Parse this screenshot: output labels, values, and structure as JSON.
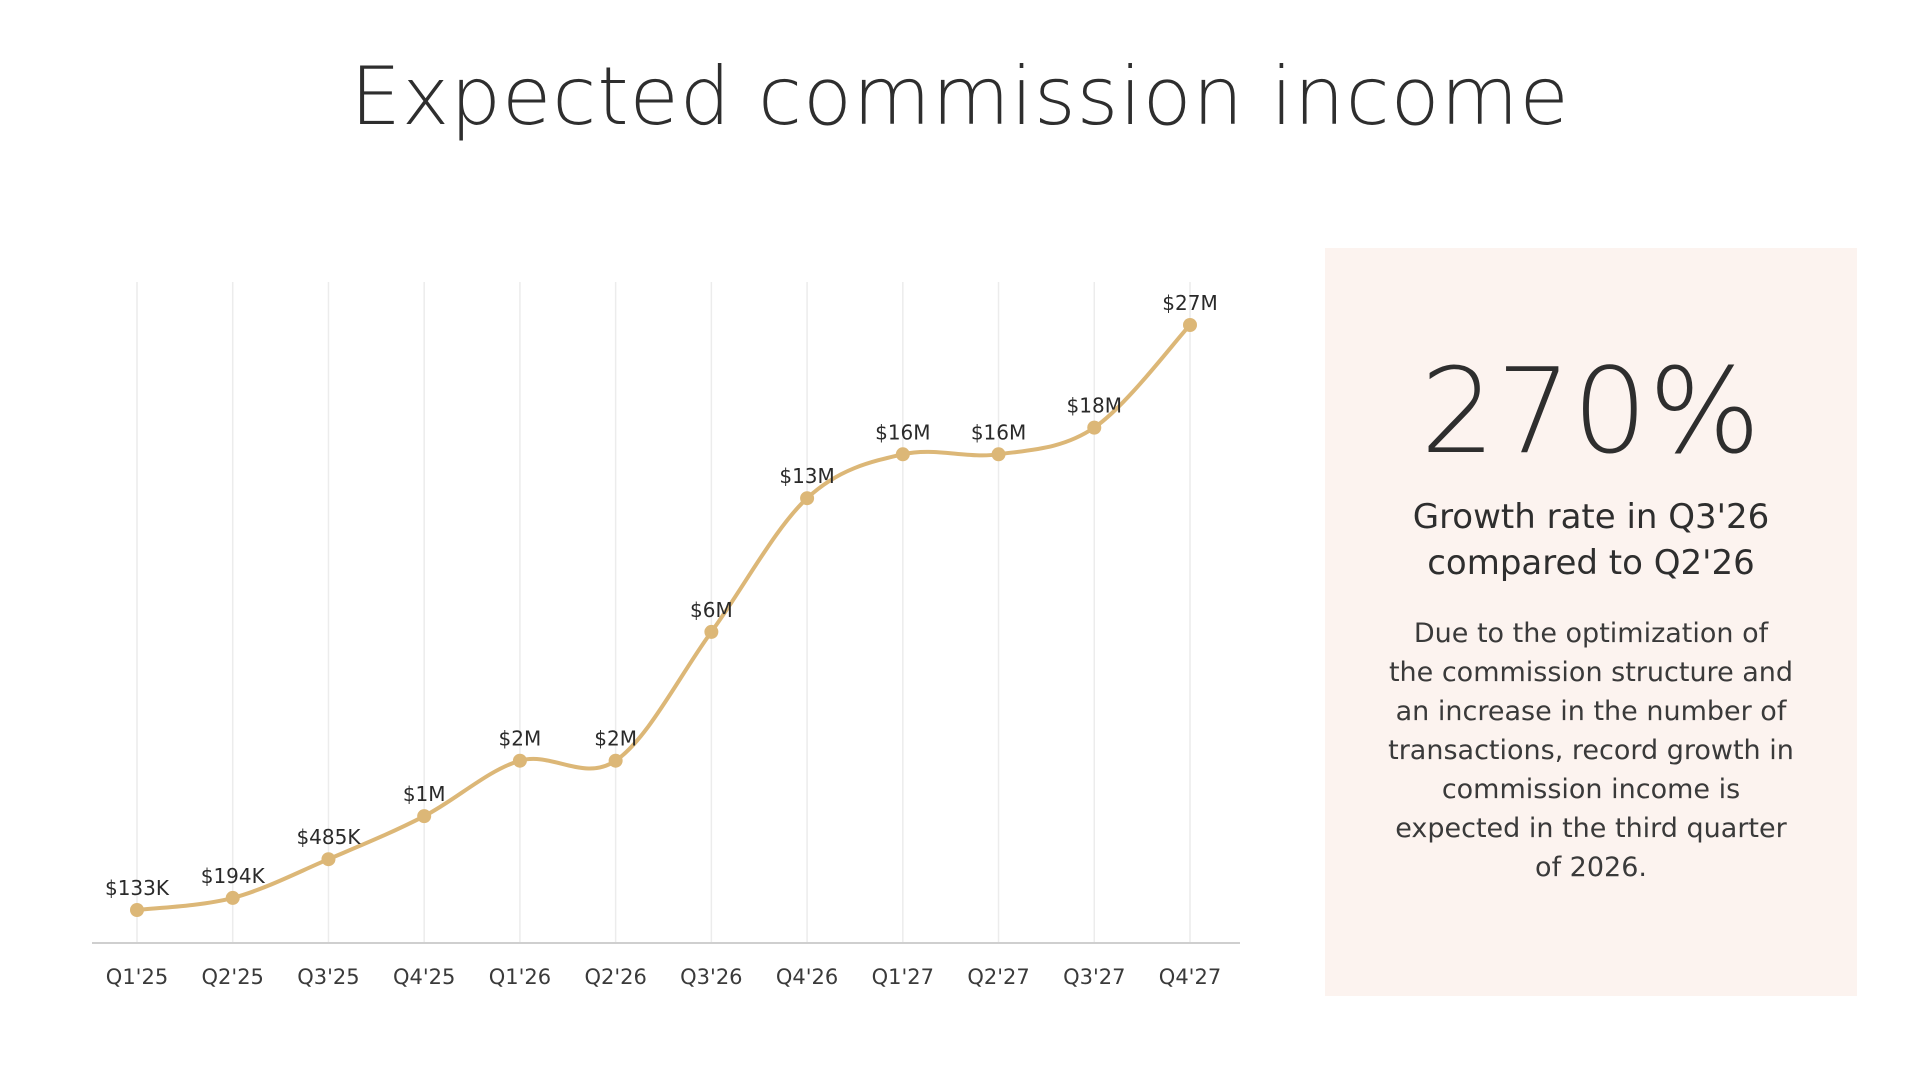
{
  "title": "Expected commission income",
  "panel": {
    "value": "270%",
    "heading_lines": [
      "Growth rate in Q3'26",
      "compared to Q2'26"
    ],
    "body_lines": [
      "Due to the optimization of",
      "the commission structure and",
      "an increase in the number of",
      "transactions, record growth in",
      "commission income is",
      "expected in the third quarter",
      "of 2026."
    ]
  },
  "colors": {
    "series": "#dcb777",
    "panel_background": "#fcf3ef"
  },
  "chart_data": {
    "type": "line",
    "categories": [
      "Q1'25",
      "Q2'25",
      "Q3'25",
      "Q4'25",
      "Q1'26",
      "Q2'26",
      "Q3'26",
      "Q4'26",
      "Q1'27",
      "Q2'27",
      "Q3'27",
      "Q4'27"
    ],
    "series": [
      {
        "values": [
          0.133,
          0.194,
          0.485,
          1,
          2,
          2,
          6,
          13,
          16,
          16,
          18,
          27
        ],
        "data_labels": [
          "$133K",
          "$194K",
          "$485K",
          "$1M",
          "$2M",
          "$2M",
          "$6M",
          "$13M",
          "$16M",
          "$16M",
          "$18M",
          "$27M"
        ]
      }
    ],
    "unit": "$M",
    "grid": "vertical",
    "smooth": true
  }
}
